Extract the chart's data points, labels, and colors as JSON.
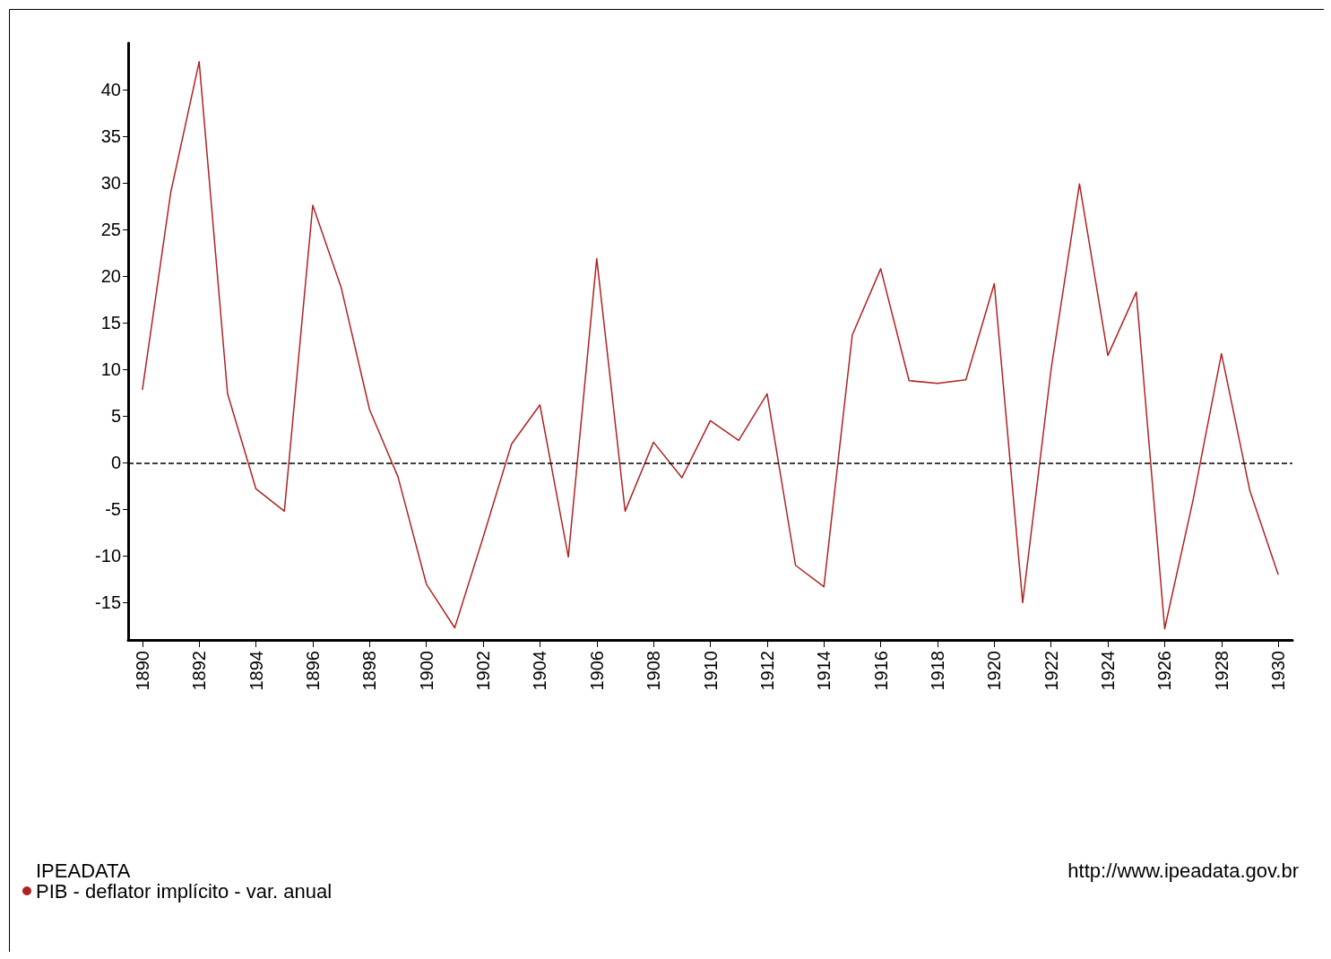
{
  "chart_data": {
    "type": "line",
    "legend_title": "IPEADATA",
    "annotations": [
      "http://www.ipeadata.gov.br"
    ],
    "x": [
      1890,
      1891,
      1892,
      1893,
      1894,
      1895,
      1896,
      1897,
      1898,
      1899,
      1900,
      1901,
      1902,
      1903,
      1904,
      1905,
      1906,
      1907,
      1908,
      1909,
      1910,
      1911,
      1912,
      1913,
      1914,
      1915,
      1916,
      1917,
      1918,
      1919,
      1920,
      1921,
      1922,
      1923,
      1924,
      1925,
      1926,
      1927,
      1928,
      1929,
      1930
    ],
    "series": [
      {
        "name": "PIB - deflator implícito - var. anual",
        "color": "#b22222",
        "values": [
          7.8,
          29,
          43,
          7.4,
          -2.8,
          -5.2,
          27.6,
          18.8,
          5.7,
          -1.5,
          -13,
          -17.7,
          -8,
          2,
          6.2,
          -10.1,
          21.9,
          -5.2,
          2.2,
          -1.6,
          4.5,
          2.4,
          7.4,
          -11,
          -13.3,
          13.7,
          20.8,
          8.8,
          8.5,
          8.9,
          19.2,
          -15,
          10,
          29.9,
          11.5,
          18.3,
          -17.8,
          -4,
          11.7,
          -3,
          -12
        ]
      }
    ],
    "xlim": [
      1889.5,
      1930.5
    ],
    "xticks": [
      1890,
      1892,
      1894,
      1896,
      1898,
      1900,
      1902,
      1904,
      1906,
      1908,
      1910,
      1912,
      1914,
      1916,
      1918,
      1920,
      1922,
      1924,
      1926,
      1928,
      1930
    ],
    "ylim": [
      -19,
      45
    ],
    "yticks": [
      -15,
      -10,
      -5,
      0,
      5,
      10,
      15,
      20,
      25,
      30,
      35,
      40
    ],
    "ref_lines": [
      {
        "axis": "y",
        "value": 0,
        "color": "#000000",
        "line_style": "dashed"
      }
    ],
    "grid": false,
    "legend": "bottom left",
    "marker": "none",
    "line_style": "solid"
  }
}
